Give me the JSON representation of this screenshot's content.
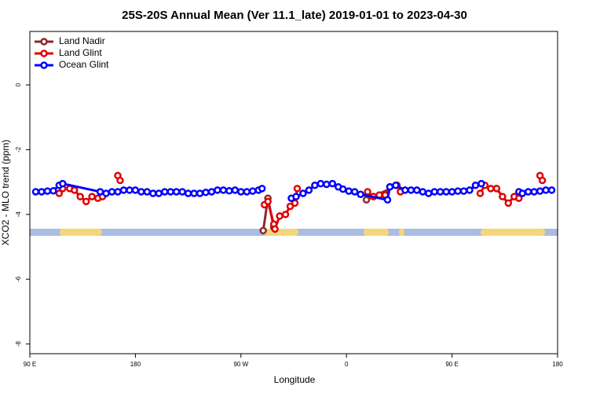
{
  "chart_data": {
    "type": "line",
    "title": "25S-20S Annual Mean (Ver 11.1_late)   2019-01-01 to 2023-04-30",
    "x_label": "Longitude",
    "y_label": "XCO2 - MLO trend (ppm)",
    "xlim": [
      90,
      540
    ],
    "ylim": [
      -8.3,
      1.65
    ],
    "xticks": [
      {
        "value": 90,
        "label": "90 E"
      },
      {
        "value": 180,
        "label": "180"
      },
      {
        "value": 270,
        "label": "90 W"
      },
      {
        "value": 360,
        "label": "0"
      },
      {
        "value": 450,
        "label": "90 E"
      },
      {
        "value": 540,
        "label": "180"
      }
    ],
    "yticks": [
      0,
      -2,
      -4,
      -6,
      -8
    ],
    "legend": "top-left",
    "series": [
      {
        "name": "Land Nadir",
        "color": "#8b2a2a",
        "x": [
          289,
          293,
          298,
          null,
          377,
          383,
          403
        ],
        "values": [
          -4.5,
          -3.5,
          -4.4,
          null,
          -3.55,
          -3.45,
          -3.1
        ]
      },
      {
        "name": "Land Glint",
        "color": "#e00000",
        "x": [
          115,
          118,
          124,
          128,
          133,
          138,
          143,
          148,
          152,
          null,
          165,
          167,
          null,
          290,
          293,
          298,
          299,
          303,
          308,
          312,
          316,
          318,
          null,
          378,
          383,
          388,
          393,
          397,
          403,
          406,
          null,
          474,
          478,
          483,
          488,
          493,
          498,
          503,
          507,
          null,
          525,
          527
        ],
        "values": [
          -3.35,
          -3.2,
          -3.2,
          -3.25,
          -3.45,
          -3.6,
          -3.45,
          -3.5,
          -3.45,
          null,
          -2.8,
          -2.95,
          null,
          -3.7,
          -3.6,
          -4.3,
          -4.45,
          -4.05,
          -4.0,
          -3.75,
          -3.65,
          -3.2,
          null,
          -3.3,
          -3.45,
          -3.4,
          -3.4,
          -3.15,
          -3.1,
          -3.3,
          null,
          -3.35,
          -3.1,
          -3.2,
          -3.2,
          -3.45,
          -3.65,
          -3.45,
          -3.5,
          null,
          -2.8,
          -2.95
        ]
      },
      {
        "name": "Ocean Glint",
        "color": "#0000ff",
        "x": [
          95,
          100,
          105,
          110,
          115,
          118,
          150,
          155,
          160,
          165,
          170,
          175,
          180,
          185,
          190,
          195,
          200,
          205,
          210,
          215,
          220,
          225,
          230,
          235,
          240,
          245,
          250,
          255,
          260,
          265,
          270,
          275,
          280,
          285,
          288,
          null,
          313,
          317,
          323,
          328,
          333,
          338,
          343,
          348,
          353,
          357,
          362,
          367,
          372,
          395,
          397,
          402,
          410,
          415,
          420,
          425,
          430,
          435,
          440,
          445,
          450,
          455,
          460,
          465,
          470,
          475,
          null,
          507,
          510,
          515,
          520,
          525,
          530,
          535
        ],
        "values": [
          -3.3,
          -3.3,
          -3.28,
          -3.27,
          -3.1,
          -3.05,
          -3.3,
          -3.35,
          -3.3,
          -3.3,
          -3.25,
          -3.25,
          -3.25,
          -3.3,
          -3.3,
          -3.35,
          -3.35,
          -3.3,
          -3.3,
          -3.3,
          -3.3,
          -3.35,
          -3.35,
          -3.35,
          -3.32,
          -3.3,
          -3.25,
          -3.25,
          -3.27,
          -3.25,
          -3.3,
          -3.3,
          -3.28,
          -3.25,
          -3.2,
          null,
          -3.5,
          -3.45,
          -3.35,
          -3.25,
          -3.1,
          -3.05,
          -3.07,
          -3.05,
          -3.15,
          -3.22,
          -3.28,
          -3.3,
          -3.38,
          -3.55,
          -3.15,
          -3.1,
          -3.25,
          -3.25,
          -3.25,
          -3.3,
          -3.35,
          -3.3,
          -3.3,
          -3.3,
          -3.3,
          -3.28,
          -3.28,
          -3.25,
          -3.1,
          -3.05,
          null,
          -3.3,
          -3.35,
          -3.3,
          -3.3,
          -3.28,
          -3.25,
          -3.25
        ]
      }
    ]
  }
}
